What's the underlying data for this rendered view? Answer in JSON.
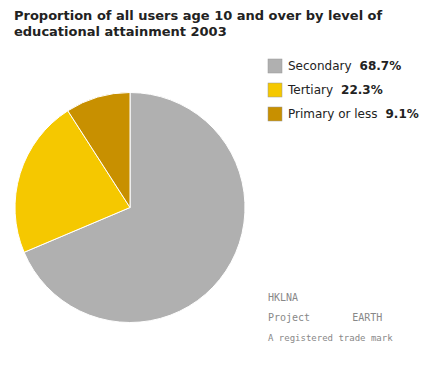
{
  "chart_data": {
    "type": "pie",
    "title": "Proportion of all users age 10 and over by level of educational attainment 2003",
    "categories": [
      "Secondary",
      "Tertiary",
      "Primary or less"
    ],
    "values": [
      68.7,
      22.3,
      9.1
    ],
    "value_labels": [
      "68.7%",
      "22.3%",
      "9.1%"
    ],
    "colors": [
      "#b0b0b0",
      "#f5c800",
      "#c89000"
    ],
    "legend": "upper right",
    "annotations": [
      "HKLNA",
      "Project       EARTH",
      "A registered trade mark"
    ]
  }
}
